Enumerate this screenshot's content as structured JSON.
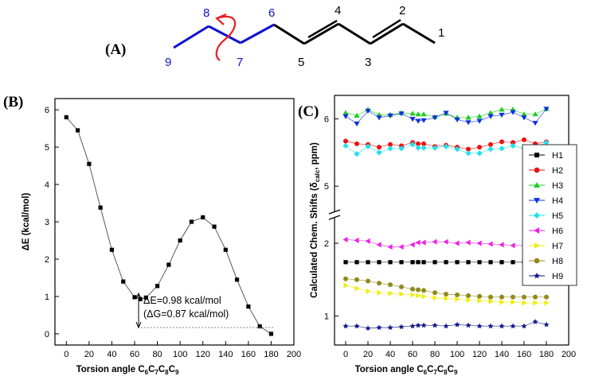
{
  "molecule": {
    "panel_label": "(A)",
    "atoms": [
      "1",
      "2",
      "3",
      "4",
      "5",
      "6",
      "7",
      "8",
      "9"
    ],
    "colors": {
      "backbone": "#000000",
      "ethyl": "#1111cc",
      "rotation_arrow": "#e82020"
    }
  },
  "chart_data": [
    {
      "type": "line",
      "panel_label": "(B)",
      "xlabel_main": "Torsion angle C",
      "xlabel_subs": [
        "6",
        "7",
        "8",
        "9"
      ],
      "xlabel_seps": [
        "C",
        "C",
        "C"
      ],
      "ylabel": "ΔE (kcal/mol)",
      "xlim": [
        -10,
        200
      ],
      "ylim": [
        -0.3,
        6.3
      ],
      "xticks": [
        0,
        20,
        40,
        60,
        80,
        100,
        120,
        140,
        160,
        180,
        200
      ],
      "yticks": [
        0,
        1,
        2,
        3,
        4,
        5,
        6
      ],
      "series": [
        {
          "marker": "square",
          "color": "#000000",
          "x": [
            0,
            10,
            20,
            30,
            40,
            50,
            60,
            65,
            70,
            80,
            90,
            100,
            110,
            120,
            130,
            140,
            150,
            160,
            170,
            180
          ],
          "y": [
            5.8,
            5.45,
            4.55,
            3.38,
            2.25,
            1.4,
            0.98,
            0.93,
            0.97,
            1.28,
            1.85,
            2.5,
            3.0,
            3.12,
            2.87,
            2.25,
            1.45,
            0.73,
            0.2,
            0.0
          ]
        }
      ],
      "annotations": [
        "ΔE=0.98 kcal/mol",
        "(ΔG=0.87 kcal/mol)"
      ]
    },
    {
      "type": "line",
      "panel_label": "(C)",
      "xlabel_main": "Torsion angle C",
      "xlabel_subs": [
        "6",
        "7",
        "8",
        "9"
      ],
      "xlabel_seps": [
        "C",
        "C",
        "C"
      ],
      "ylabel_main": "Calculated Chem. Shifts (δ",
      "ylabel_sub": "calc",
      "ylabel_end": ", ppm)",
      "xlim": [
        -10,
        200
      ],
      "axis_break": true,
      "ylim_lower": [
        0.6,
        2.35
      ],
      "ylim_upper": [
        4.6,
        6.35
      ],
      "xticks": [
        0,
        20,
        40,
        60,
        80,
        100,
        120,
        140,
        160,
        180,
        200
      ],
      "yticks": [
        1,
        2,
        5,
        6
      ],
      "x": [
        0,
        10,
        20,
        30,
        40,
        50,
        60,
        65,
        70,
        80,
        90,
        100,
        110,
        120,
        130,
        140,
        150,
        160,
        170,
        180
      ],
      "series": [
        {
          "name": "H1",
          "marker": "square",
          "color": "#000000",
          "y": [
            1.74,
            1.74,
            1.74,
            1.74,
            1.74,
            1.74,
            1.74,
            1.74,
            1.74,
            1.74,
            1.74,
            1.74,
            1.74,
            1.74,
            1.74,
            1.74,
            1.74,
            1.74,
            1.74,
            1.74
          ]
        },
        {
          "name": "H2",
          "marker": "circle",
          "color": "#ee1111",
          "y": [
            5.67,
            5.63,
            5.62,
            5.58,
            5.62,
            5.6,
            5.65,
            5.63,
            5.63,
            5.59,
            5.61,
            5.58,
            5.55,
            5.58,
            5.62,
            5.66,
            5.65,
            5.69,
            5.63,
            5.66
          ]
        },
        {
          "name": "H3",
          "marker": "triangle-up",
          "color": "#1fcc1f",
          "y": [
            6.09,
            6.05,
            6.14,
            6.06,
            6.06,
            6.09,
            6.08,
            6.07,
            6.07,
            6.03,
            6.08,
            6.02,
            6.02,
            6.04,
            6.09,
            6.14,
            6.14,
            6.07,
            6.07,
            6.15
          ]
        },
        {
          "name": "H4",
          "marker": "triangle-down",
          "color": "#1030e0",
          "y": [
            6.04,
            5.93,
            6.12,
            6.02,
            6.05,
            6.08,
            6.0,
            5.97,
            5.98,
            6.02,
            6.09,
            5.99,
            5.95,
            5.97,
            6.04,
            6.06,
            6.1,
            6.02,
            5.94,
            6.15
          ]
        },
        {
          "name": "H5",
          "marker": "diamond",
          "color": "#22e0ee",
          "y": [
            5.6,
            5.48,
            5.59,
            5.5,
            5.56,
            5.56,
            5.62,
            5.57,
            5.57,
            5.57,
            5.59,
            5.55,
            5.49,
            5.49,
            5.55,
            5.56,
            5.6,
            5.56,
            5.57,
            5.65
          ]
        },
        {
          "name": "H6",
          "marker": "triangle-left",
          "color": "#ee22dd",
          "y": [
            2.05,
            2.04,
            2.03,
            1.98,
            1.95,
            1.95,
            1.98,
            2.01,
            2.01,
            2.02,
            2.02,
            2.0,
            2.01,
            2.0,
            1.99,
            1.98,
            1.97,
            1.97,
            1.97,
            1.94
          ]
        },
        {
          "name": "H7",
          "marker": "triangle-right",
          "color": "#eeee11",
          "y": [
            1.42,
            1.38,
            1.34,
            1.32,
            1.31,
            1.3,
            1.29,
            1.28,
            1.27,
            1.25,
            1.24,
            1.23,
            1.22,
            1.21,
            1.2,
            1.19,
            1.19,
            1.18,
            1.18,
            1.18
          ]
        },
        {
          "name": "H8",
          "marker": "circle",
          "color": "#8f8a1a",
          "y": [
            1.51,
            1.5,
            1.48,
            1.45,
            1.43,
            1.4,
            1.37,
            1.36,
            1.35,
            1.32,
            1.3,
            1.29,
            1.28,
            1.27,
            1.26,
            1.26,
            1.26,
            1.26,
            1.26,
            1.26
          ]
        },
        {
          "name": "H9",
          "marker": "star",
          "color": "#101888",
          "y": [
            0.86,
            0.86,
            0.83,
            0.84,
            0.84,
            0.85,
            0.86,
            0.87,
            0.87,
            0.87,
            0.86,
            0.88,
            0.87,
            0.86,
            0.86,
            0.86,
            0.86,
            0.86,
            0.92,
            0.88
          ]
        }
      ]
    }
  ]
}
